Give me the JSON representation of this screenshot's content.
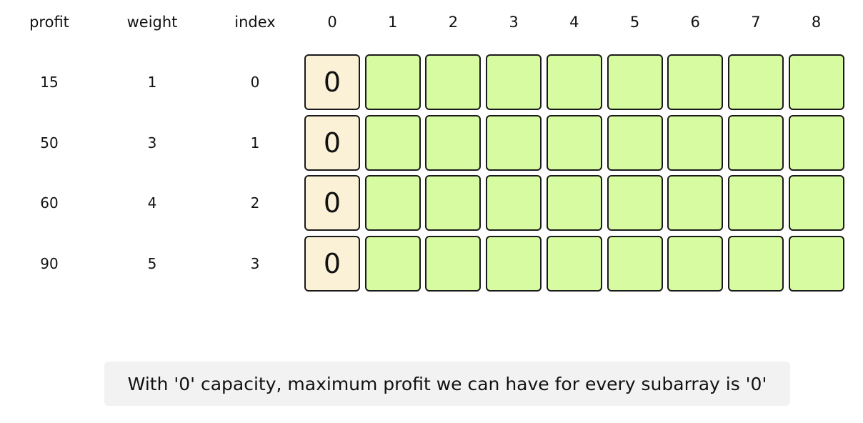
{
  "headers": {
    "profit": "profit",
    "weight": "weight",
    "index": "index",
    "capacities": [
      "0",
      "1",
      "2",
      "3",
      "4",
      "5",
      "6",
      "7",
      "8"
    ]
  },
  "items": [
    {
      "profit": "15",
      "weight": "1",
      "index": "0"
    },
    {
      "profit": "50",
      "weight": "3",
      "index": "1"
    },
    {
      "profit": "60",
      "weight": "4",
      "index": "2"
    },
    {
      "profit": "90",
      "weight": "5",
      "index": "3"
    }
  ],
  "dp_table": [
    [
      "0",
      "",
      "",
      "",
      "",
      "",
      "",
      "",
      ""
    ],
    [
      "0",
      "",
      "",
      "",
      "",
      "",
      "",
      "",
      ""
    ],
    [
      "0",
      "",
      "",
      "",
      "",
      "",
      "",
      "",
      ""
    ],
    [
      "0",
      "",
      "",
      "",
      "",
      "",
      "",
      "",
      ""
    ]
  ],
  "colors": {
    "filled_cell": "#fbf1d6",
    "empty_cell": "#d6fba1",
    "caption_bg": "#f2f2f2"
  },
  "caption": "With '0' capacity, maximum profit we can have for every subarray is '0'"
}
